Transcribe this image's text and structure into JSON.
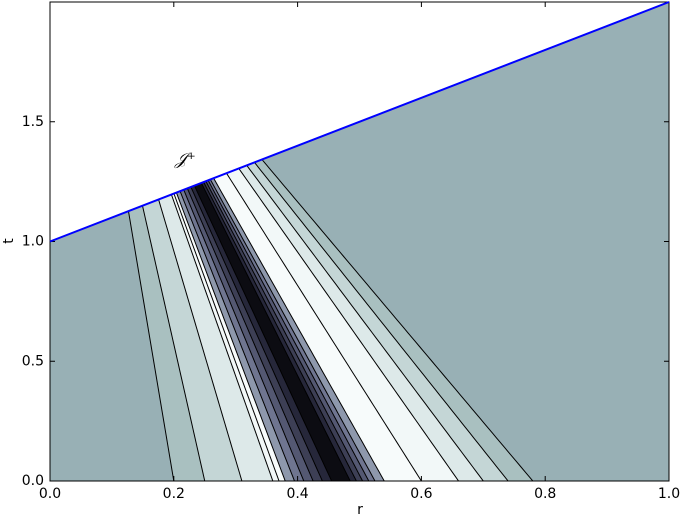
{
  "chart_data": {
    "type": "line",
    "x_label": "r",
    "y_label": "t",
    "annotation": "𝒥⁺",
    "x": [
      0,
      1.0
    ],
    "values": [
      1.0,
      2.0
    ],
    "color": "#0000ff",
    "xlim": [
      0,
      1.0
    ],
    "ylim": [
      0,
      2.0
    ],
    "xticks": [
      {
        "value": 0,
        "label": "0.0"
      },
      0.2,
      0.4,
      0.6,
      0.8,
      {
        "value": 1.0,
        "label": "1.0"
      }
    ],
    "yticks": [
      {
        "value": 0,
        "label": "0.0"
      },
      0.5,
      {
        "value": 1.0,
        "label": "1.0"
      },
      1.5
    ]
  }
}
